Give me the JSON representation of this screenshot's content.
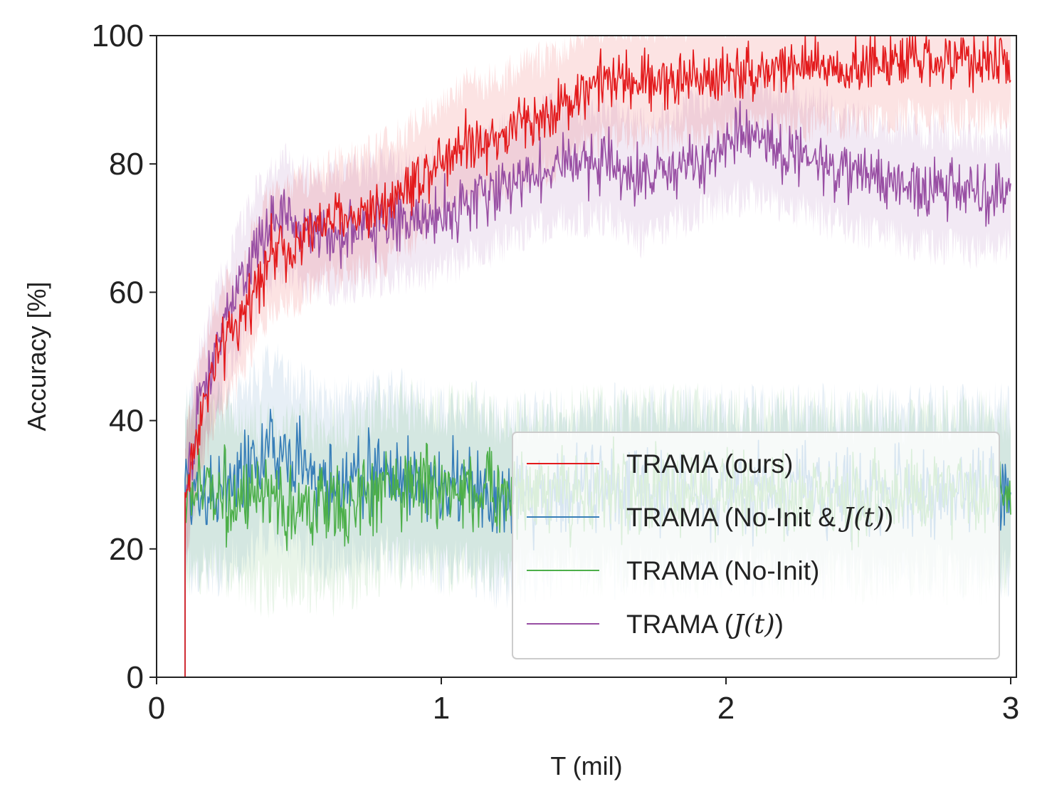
{
  "chart_data": {
    "type": "line",
    "title": "",
    "xlabel": "T (mil)",
    "ylabel": "Accuracy [%]",
    "xlim": [
      0,
      3.02
    ],
    "ylim": [
      0,
      100
    ],
    "x_ticks": [
      0,
      1,
      2,
      3
    ],
    "x_tick_labels": [
      "0",
      "1",
      "2",
      "3"
    ],
    "y_ticks": [
      0,
      20,
      40,
      60,
      80,
      100
    ],
    "y_tick_labels": [
      "0",
      "20",
      "40",
      "60",
      "80",
      "100"
    ],
    "grid": false,
    "legend_position": "lower-right",
    "series": [
      {
        "name": "TRAMA (ours)",
        "legend_prefix": "TRAMA (ours)",
        "legend_math": "",
        "legend_suffix": "",
        "color": "#e31a1c",
        "x": [
          0.1,
          0.15,
          0.2,
          0.25,
          0.3,
          0.35,
          0.4,
          0.5,
          0.6,
          0.7,
          0.8,
          0.9,
          1.0,
          1.1,
          1.2,
          1.3,
          1.4,
          1.5,
          1.6,
          1.7,
          1.8,
          2.0,
          2.2,
          2.4,
          2.6,
          2.8,
          3.0
        ],
        "y": [
          28,
          40,
          48,
          53,
          55,
          62,
          66,
          68,
          71,
          72,
          74,
          77,
          81,
          84,
          84,
          87,
          88,
          92,
          93,
          93,
          93,
          94,
          95,
          95,
          96,
          96,
          96
        ],
        "noise": 3.5
      },
      {
        "name": "TRAMA (No-Init & J(t))",
        "legend_prefix": "TRAMA (No-Init & ",
        "legend_math": "J(t)",
        "legend_suffix": ")",
        "color": "#377eb8",
        "x": [
          0.1,
          0.2,
          0.3,
          0.4,
          0.5,
          0.6,
          0.7,
          0.8,
          0.9,
          1.0,
          1.1,
          1.2,
          1.3,
          1.5,
          2.0,
          2.5,
          3.0
        ],
        "y": [
          30,
          29,
          31,
          36,
          33,
          30,
          31,
          32,
          31,
          29,
          30,
          27,
          28,
          29,
          29,
          29,
          29
        ],
        "noise": 5
      },
      {
        "name": "TRAMA (No-Init)",
        "legend_prefix": "TRAMA (No-Init)",
        "legend_math": "",
        "legend_suffix": "",
        "color": "#4daf4a",
        "x": [
          0.1,
          0.2,
          0.3,
          0.4,
          0.5,
          0.6,
          0.7,
          0.8,
          0.9,
          1.0,
          1.1,
          1.2,
          1.3,
          1.5,
          2.0,
          2.5,
          3.0
        ],
        "y": [
          28,
          30,
          27,
          26,
          27,
          26,
          27,
          30,
          30,
          29,
          30,
          28,
          29,
          29,
          29,
          28,
          28
        ],
        "noise": 5
      },
      {
        "name": "TRAMA (J(t))",
        "legend_prefix": "TRAMA (",
        "legend_math": "J(t)",
        "legend_suffix": ")",
        "color": "#984ea3",
        "x": [
          0.1,
          0.15,
          0.2,
          0.25,
          0.3,
          0.35,
          0.4,
          0.45,
          0.5,
          0.6,
          0.7,
          0.8,
          0.9,
          1.0,
          1.1,
          1.2,
          1.3,
          1.4,
          1.5,
          1.6,
          1.7,
          1.8,
          1.9,
          2.0,
          2.1,
          2.2,
          2.3,
          2.4,
          2.5,
          2.6,
          2.7,
          2.8,
          2.9,
          3.0
        ],
        "y": [
          27,
          42,
          50,
          56,
          62,
          67,
          70,
          72,
          70,
          69,
          70,
          71,
          71,
          72,
          74,
          76,
          78,
          80,
          80,
          80,
          77,
          79,
          81,
          83,
          84,
          82,
          81,
          79,
          78,
          77,
          76,
          76,
          75,
          76
        ],
        "noise": 3.5
      }
    ]
  }
}
